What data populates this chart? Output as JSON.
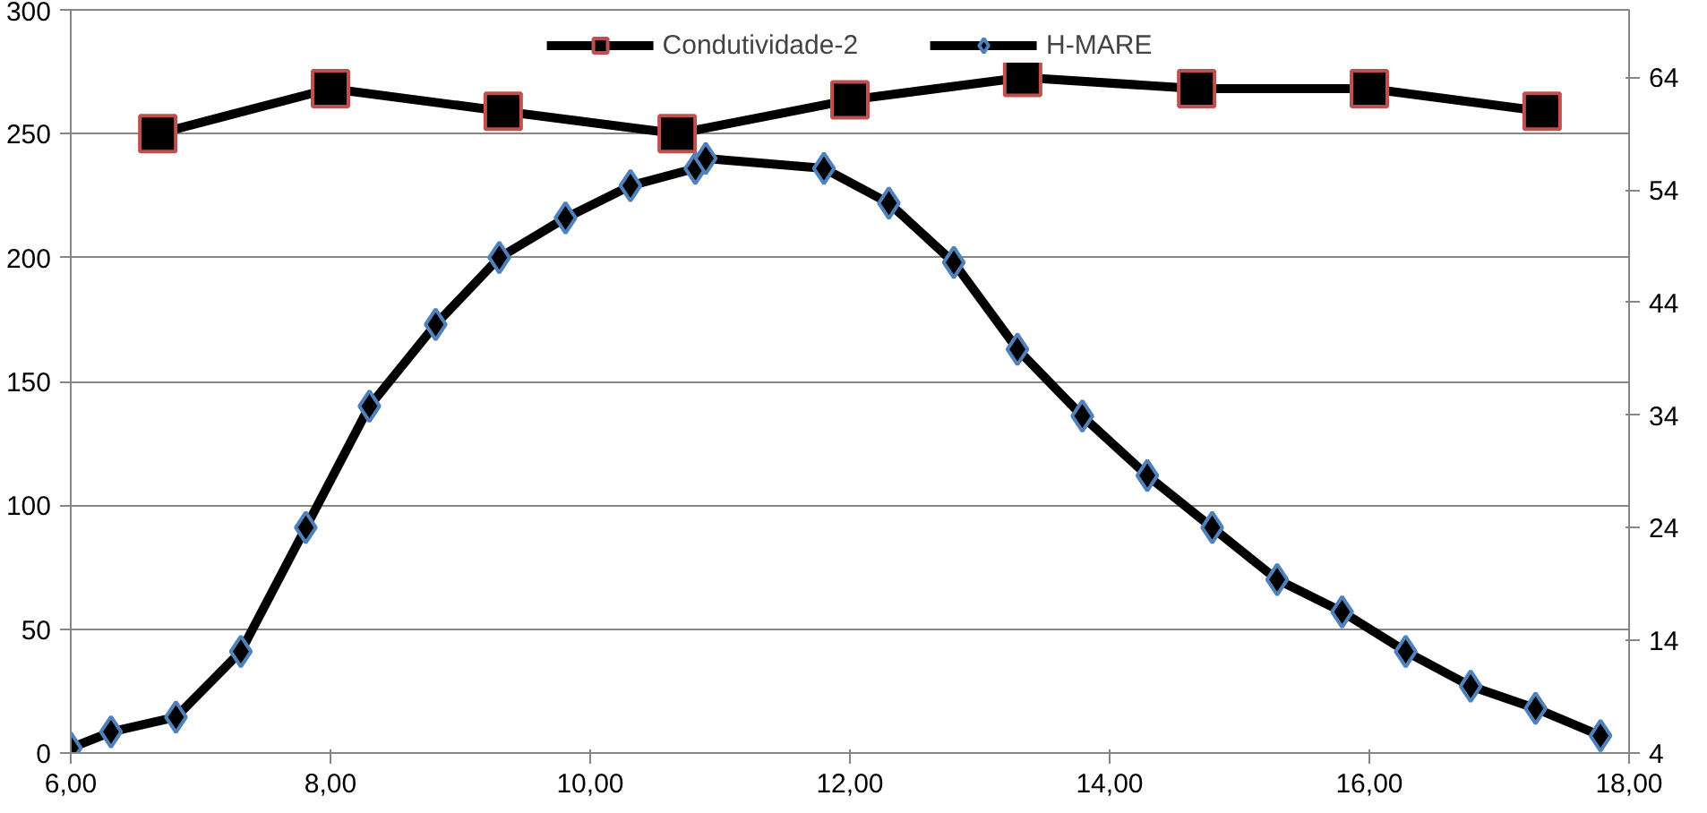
{
  "chart_data": {
    "type": "line",
    "xlim": [
      6,
      18
    ],
    "xticks": [
      {
        "value": 6,
        "label": "6,00"
      },
      {
        "value": 8,
        "label": "8,00"
      },
      {
        "value": 10,
        "label": "10,00"
      },
      {
        "value": 12,
        "label": "12,00"
      },
      {
        "value": 14,
        "label": "14,00"
      },
      {
        "value": 16,
        "label": "16,00"
      },
      {
        "value": 18,
        "label": "18,00"
      }
    ],
    "ylim": [
      0,
      300
    ],
    "yticks": [
      0,
      50,
      100,
      150,
      200,
      250,
      300
    ],
    "y2lim": [
      4,
      70
    ],
    "y2ticks": [
      4,
      14,
      24,
      34,
      44,
      54,
      64
    ],
    "grid": "y",
    "legend": "top",
    "line_style": "solid",
    "series": [
      {
        "name": "Condutividade-2",
        "color": "#000000",
        "axis": "y2",
        "marker": "square",
        "x": [
          6.67,
          8.0,
          9.33,
          10.67,
          12.0,
          13.33,
          14.67,
          16.0,
          17.33
        ],
        "values": [
          59,
          63,
          61,
          59,
          62,
          64,
          63,
          63,
          61
        ]
      },
      {
        "name": "H-MARE",
        "color": "#000000",
        "marker": "diamond",
        "x": [
          6.0,
          6.31,
          6.81,
          7.31,
          7.81,
          8.3,
          8.81,
          9.3,
          9.81,
          10.31,
          10.81,
          10.89,
          11.8,
          12.3,
          12.8,
          13.29,
          13.79,
          14.29,
          14.79,
          15.29,
          15.79,
          16.28,
          16.78,
          17.28,
          17.78
        ],
        "values": [
          2,
          8.5,
          14.5,
          41,
          91,
          140,
          173,
          200,
          216,
          229,
          236,
          240,
          236,
          222,
          198,
          163,
          136,
          112,
          91,
          70,
          57,
          41,
          27,
          18,
          7
        ]
      }
    ]
  }
}
